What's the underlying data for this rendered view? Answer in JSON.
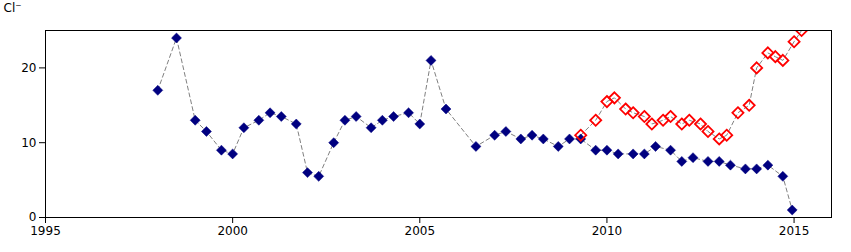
{
  "chart_data": {
    "type": "line",
    "ylabel": "Cl⁻",
    "xlim": [
      1995,
      2016
    ],
    "ylim": [
      0,
      25
    ],
    "xticks": [
      1995,
      2000,
      2005,
      2010,
      2015
    ],
    "yticks": [
      0,
      10,
      20
    ],
    "line_style": "dashed",
    "series": [
      {
        "color": "#000080",
        "marker": "diamond",
        "x": [
          1998.0,
          1998.5,
          1999.0,
          1999.3,
          1999.7,
          2000.0,
          2000.3,
          2000.7,
          2001.0,
          2001.3,
          2001.7,
          2002.0,
          2002.3,
          2002.7,
          2003.0,
          2003.3,
          2003.7,
          2004.0,
          2004.3,
          2004.7,
          2005.0,
          2005.3,
          2005.7,
          2006.5,
          2007.0,
          2007.3,
          2007.7,
          2008.0,
          2008.3,
          2008.7,
          2009.0,
          2009.3,
          2009.7,
          2010.0,
          2010.3,
          2010.7,
          2011.0,
          2011.3,
          2011.7,
          2012.0,
          2012.3,
          2012.7,
          2013.0,
          2013.3,
          2013.7,
          2014.0,
          2014.3,
          2014.7,
          2014.95
        ],
        "values": [
          17.0,
          24.0,
          13.0,
          11.5,
          9.0,
          8.5,
          12.0,
          13.0,
          14.0,
          13.5,
          12.5,
          6.0,
          5.5,
          10.0,
          13.0,
          13.5,
          12.0,
          13.0,
          13.5,
          14.0,
          12.5,
          21.0,
          14.5,
          9.5,
          11.0,
          11.5,
          10.5,
          11.0,
          10.5,
          9.5,
          10.5,
          10.5,
          9.0,
          9.0,
          8.5,
          8.5,
          8.5,
          9.5,
          9.0,
          7.5,
          8.0,
          7.5,
          7.5,
          7.0,
          6.5,
          6.5,
          7.0,
          5.5,
          1.0
        ]
      },
      {
        "color": "#FF0000",
        "marker": "open_diamond",
        "x": [
          2009.3,
          2009.7,
          2010.0,
          2010.2,
          2010.5,
          2010.7,
          2011.0,
          2011.2,
          2011.5,
          2011.7,
          2012.0,
          2012.2,
          2012.5,
          2012.7,
          2013.0,
          2013.2,
          2013.5,
          2013.8,
          2014.0,
          2014.3,
          2014.5,
          2014.7,
          2015.0,
          2015.2
        ],
        "values": [
          11.0,
          13.0,
          15.5,
          16.0,
          14.5,
          14.0,
          13.5,
          12.5,
          13.0,
          13.5,
          12.5,
          13.0,
          12.5,
          11.5,
          10.5,
          11.0,
          14.0,
          15.0,
          20.0,
          22.0,
          21.5,
          21.0,
          23.5,
          25.0
        ]
      }
    ]
  }
}
